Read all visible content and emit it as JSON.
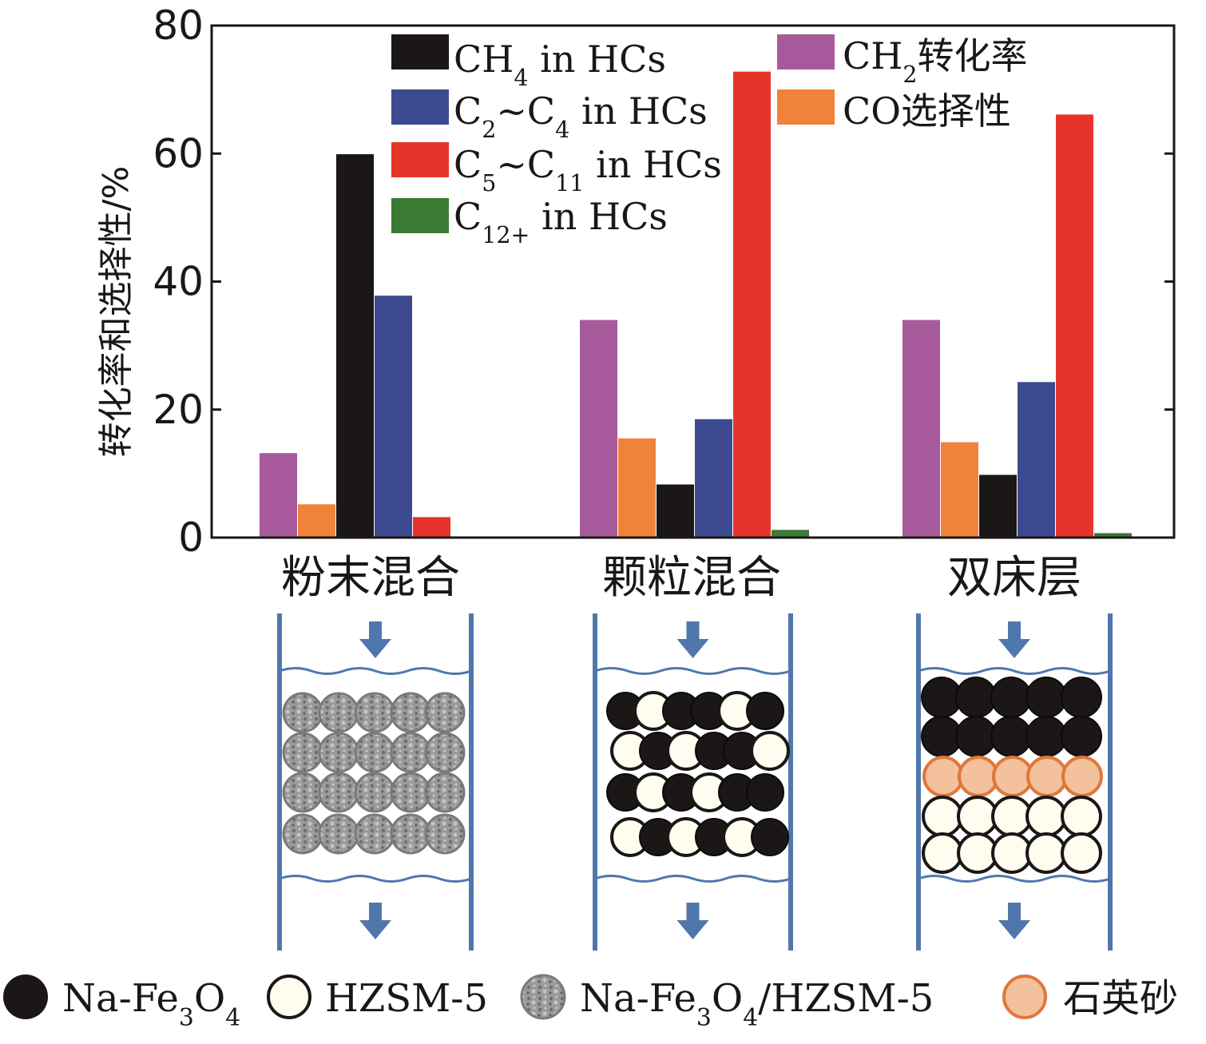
{
  "chart_data": {
    "type": "bar",
    "ylabel": "转化率和选择性/%",
    "ylim": [
      0,
      80
    ],
    "yticks": [
      0,
      20,
      40,
      60,
      80
    ],
    "categories": [
      "粉末混合",
      "颗粒混合",
      "双床层"
    ],
    "legend": [
      [
        {
          "pre": "CH",
          "sub": "4",
          "post": " in HCs"
        }
      ],
      [
        {
          "pre": "C",
          "sub": "2",
          "post": "~C"
        },
        {
          "pre": "",
          "sub": "4",
          "post": " in HCs"
        }
      ],
      [
        {
          "pre": "C",
          "sub": "5",
          "post": "~C"
        },
        {
          "pre": "",
          "sub": "11",
          "post": " in HCs"
        }
      ],
      [
        {
          "pre": "C",
          "sub": "12+",
          "post": " in HCs"
        }
      ],
      [
        {
          "pre": "CH",
          "sub": "2",
          "post": "转化率"
        }
      ],
      [
        {
          "pre": "CO选择性",
          "sub": "",
          "post": ""
        }
      ]
    ],
    "series": [
      {
        "key": "ch2_conversion",
        "color": "#a65a9c",
        "values": [
          13.2,
          34.0,
          34.0
        ]
      },
      {
        "key": "co_selectivity",
        "color": "#f0823a",
        "values": [
          5.2,
          15.5,
          14.9
        ]
      },
      {
        "key": "ch4",
        "color": "#1a1716",
        "values": [
          59.9,
          8.3,
          9.8
        ]
      },
      {
        "key": "c2_c4",
        "color": "#3d4a8f",
        "values": [
          37.8,
          18.5,
          24.3
        ]
      },
      {
        "key": "c5_c11",
        "color": "#e5352b",
        "values": [
          3.2,
          72.8,
          66.1
        ]
      },
      {
        "key": "c12_plus",
        "color": "#3a7a34",
        "values": [
          0,
          1.2,
          0.7
        ]
      }
    ]
  },
  "particle_legend": [
    {
      "type": "black",
      "parts": [
        {
          "pre": "Na-Fe",
          "sub": "3",
          "post": "O"
        },
        {
          "pre": "",
          "sub": "4",
          "post": ""
        }
      ]
    },
    {
      "type": "white",
      "parts": [
        {
          "pre": "HZSM-5",
          "sub": "",
          "post": ""
        }
      ]
    },
    {
      "type": "gray",
      "parts": [
        {
          "pre": "Na-Fe",
          "sub": "3",
          "post": "O"
        },
        {
          "pre": "",
          "sub": "4",
          "post": "/HZSM-5"
        }
      ]
    },
    {
      "type": "orange",
      "parts": [
        {
          "pre": "石英砂",
          "sub": "",
          "post": ""
        }
      ]
    }
  ],
  "colors": {
    "black_particle": "#1a1716",
    "white_particle": "#fefdf0",
    "gray_particle": "#8a8a8a",
    "orange_particle": "#f3c19c",
    "orange_outline": "#e0773a",
    "reactor_wall": "#4f77ac"
  }
}
